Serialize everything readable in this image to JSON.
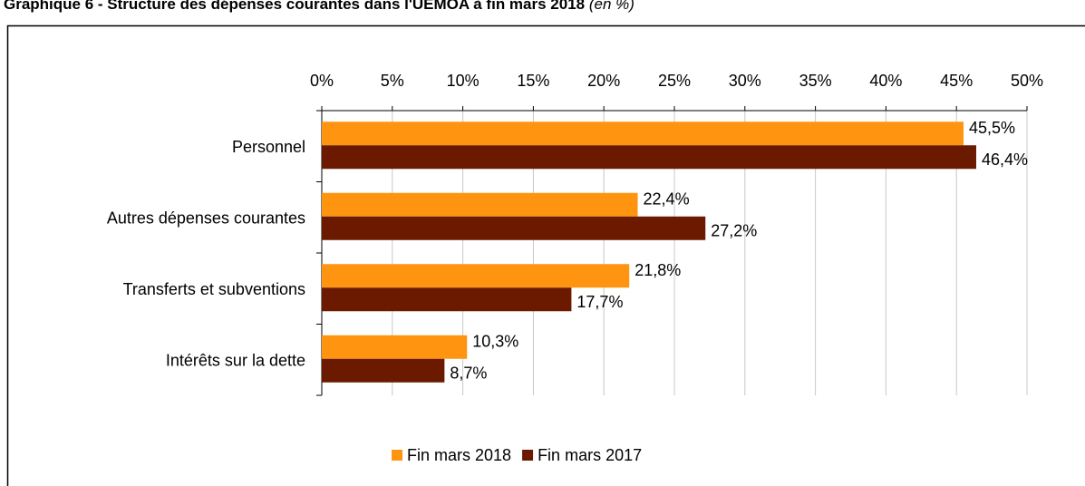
{
  "chart_data": {
    "type": "bar",
    "orientation": "horizontal",
    "title": "Graphique 6 - Structure des dépenses courantes dans l'UEMOA à fin mars 2018",
    "subtitle": "(en %)",
    "categories": [
      "Personnel",
      "Autres dépenses courantes",
      "Transferts et subventions",
      "Intérêts sur la dette"
    ],
    "series": [
      {
        "name": "Fin mars 2018",
        "color": "#ff9411",
        "values": [
          45.5,
          22.4,
          21.8,
          10.3
        ],
        "value_labels": [
          "45,5%",
          "22,4%",
          "21,8%",
          "10,3%"
        ]
      },
      {
        "name": "Fin mars 2017",
        "color": "#6b1a00",
        "values": [
          46.4,
          27.2,
          17.7,
          8.7
        ],
        "value_labels": [
          "46,4%",
          "27,2%",
          "17,7%",
          "8,7%"
        ]
      }
    ],
    "xlim": [
      0,
      50
    ],
    "xticks": [
      {
        "value": 0,
        "label": "0%"
      },
      {
        "value": 5,
        "label": "5%"
      },
      {
        "value": 10,
        "label": "10%"
      },
      {
        "value": 15,
        "label": "15%"
      },
      {
        "value": 20,
        "label": "20%"
      },
      {
        "value": 25,
        "label": "25%"
      },
      {
        "value": 30,
        "label": "30%"
      },
      {
        "value": 35,
        "label": "35%"
      },
      {
        "value": 40,
        "label": "40%"
      },
      {
        "value": 45,
        "label": "45%"
      },
      {
        "value": 50,
        "label": "50%"
      }
    ],
    "grid": true,
    "legend": "bottom"
  }
}
